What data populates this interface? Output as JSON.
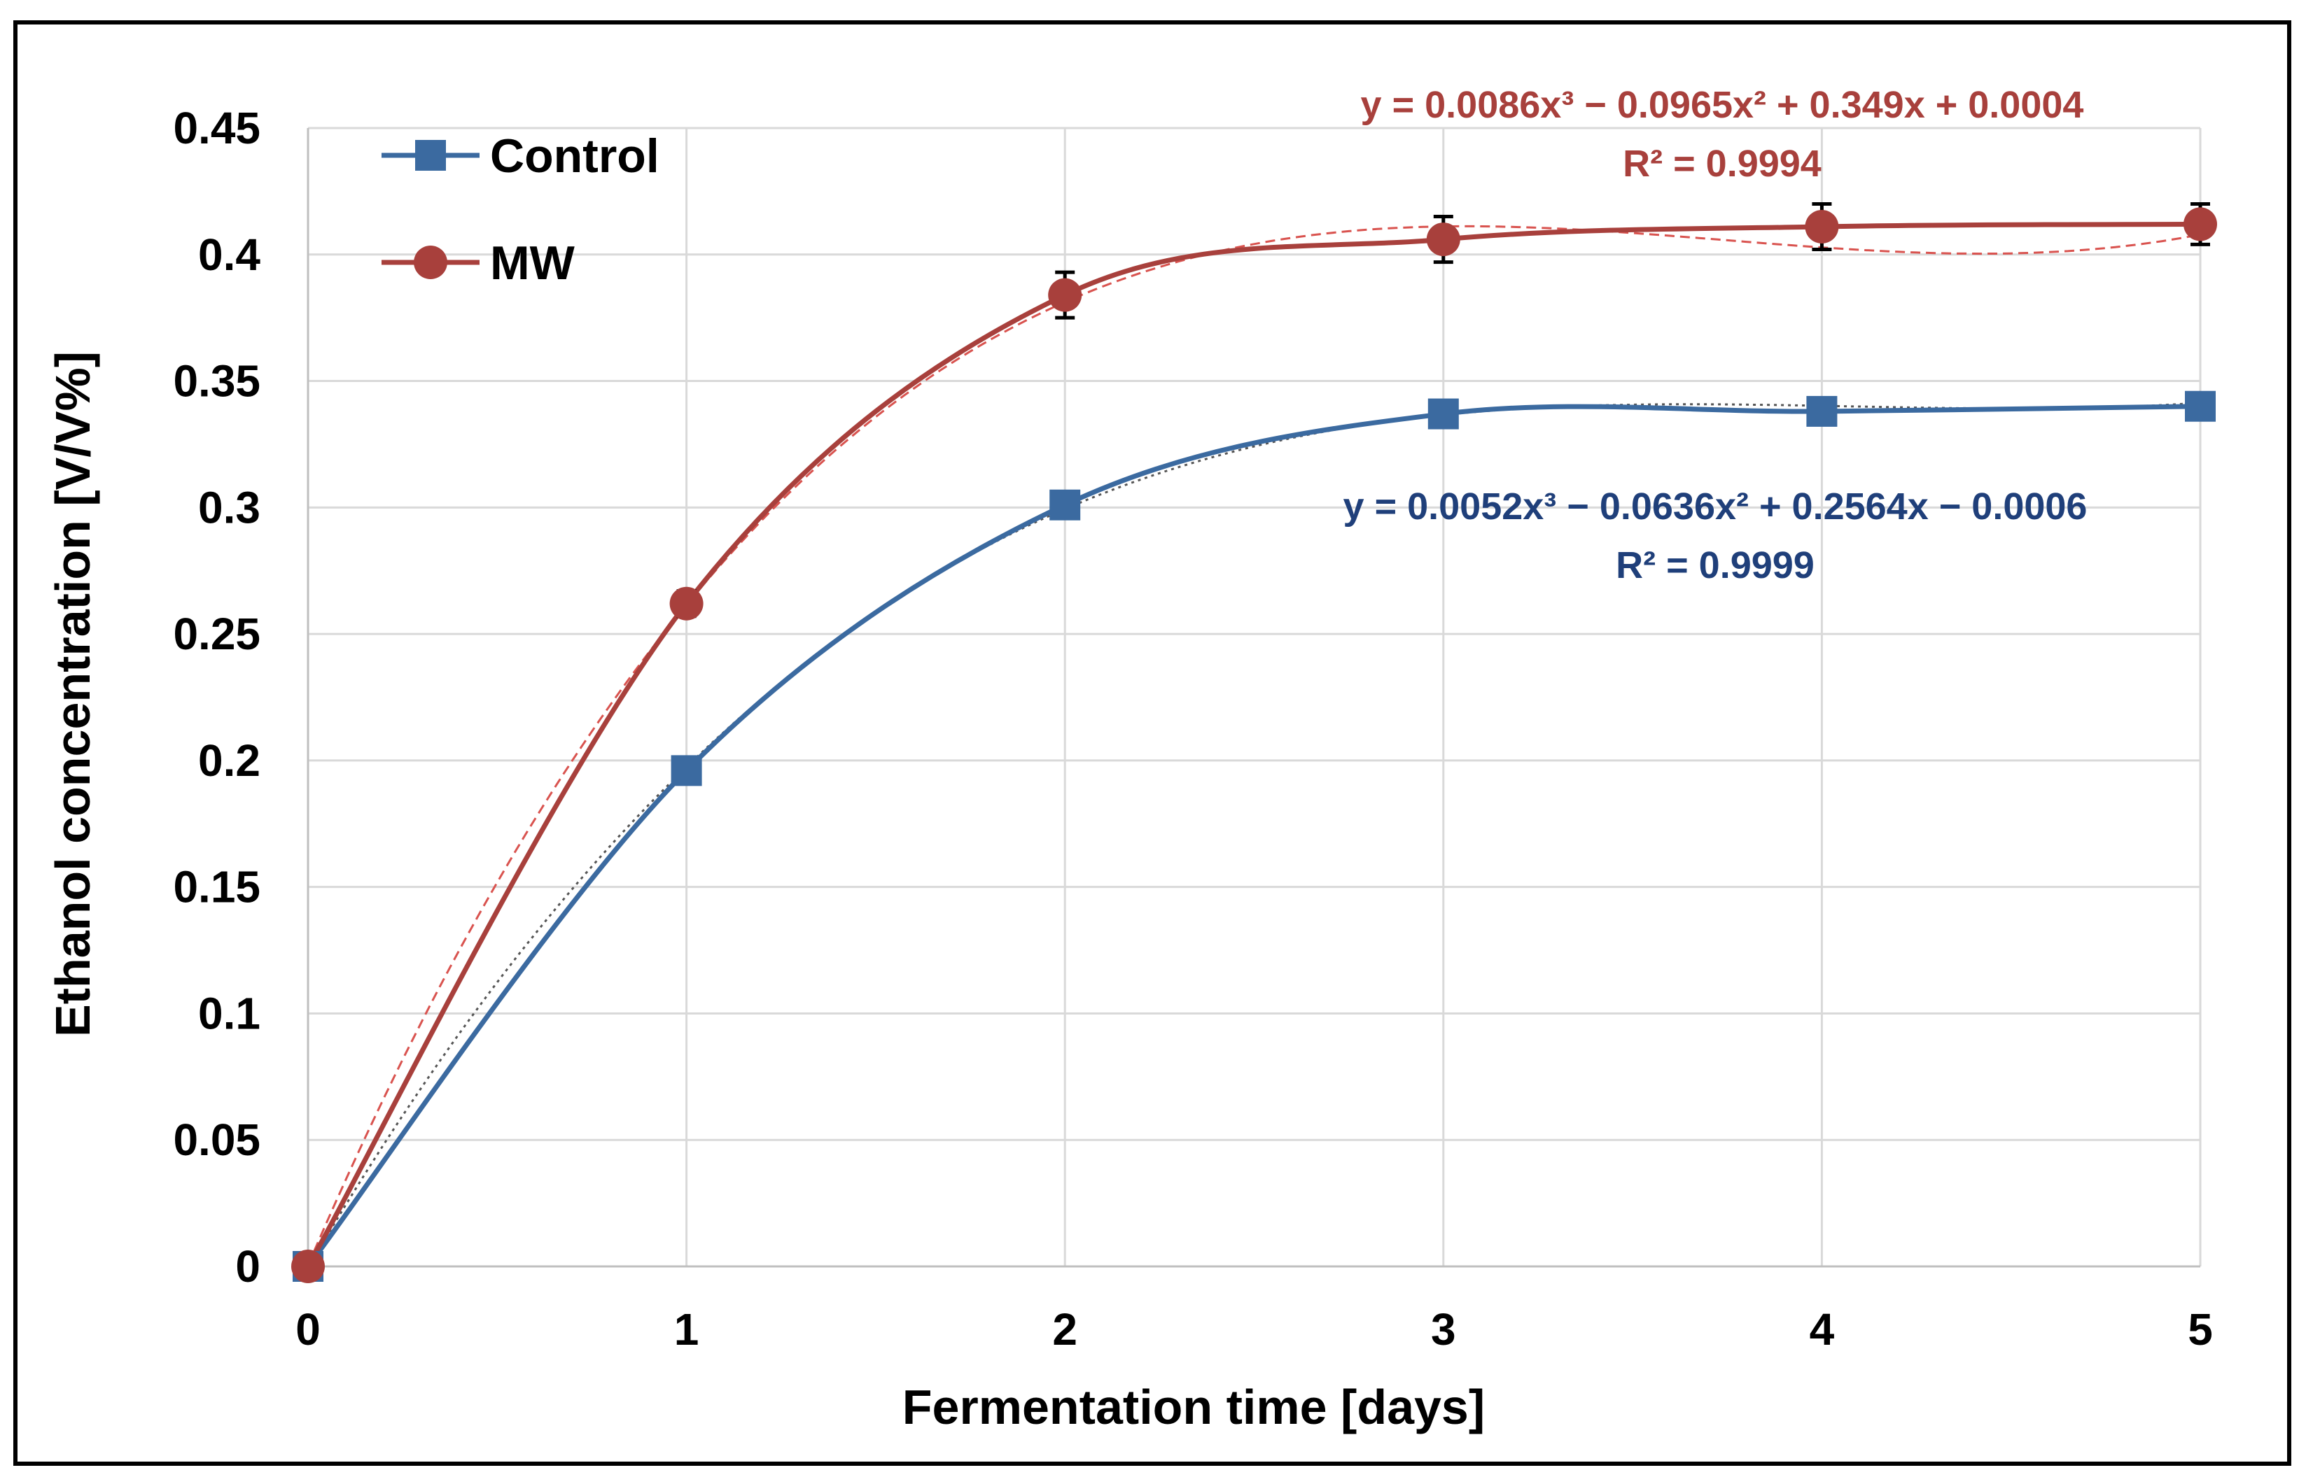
{
  "chart_data": {
    "type": "line",
    "title": "",
    "xlabel": "Fermentation time [days]",
    "ylabel": "Ethanol concentration [V/V%]",
    "x": [
      0,
      1,
      2,
      3,
      4,
      5
    ],
    "xlim": [
      0,
      5
    ],
    "ylim": [
      0,
      0.45
    ],
    "x_ticks": [
      "0",
      "1",
      "2",
      "3",
      "4",
      "5"
    ],
    "y_ticks": [
      "0",
      "0.05",
      "0.1",
      "0.15",
      "0.2",
      "0.25",
      "0.3",
      "0.35",
      "0.4",
      "0.45"
    ],
    "grid": true,
    "legend_position": "top-left",
    "series": [
      {
        "name": "Control",
        "color": "#3b6aa0",
        "marker": "square",
        "values": [
          0,
          0.196,
          0.301,
          0.337,
          0.338,
          0.34
        ],
        "error": [
          0,
          0,
          0,
          0,
          0,
          0
        ],
        "trendline": {
          "style": "dotted",
          "color": "#555555",
          "coefficients": [
            -0.0006,
            0.2564,
            -0.0636,
            0.0052
          ],
          "equation": "y = 0.0052x³ − 0.0636x² + 0.2564x − 0.0006",
          "r_squared": "R² = 0.9999",
          "label_color": "#1f3f7a"
        }
      },
      {
        "name": "MW",
        "color": "#a8403c",
        "marker": "circle",
        "values": [
          0,
          0.262,
          0.384,
          0.406,
          0.411,
          0.412
        ],
        "error": [
          0,
          0.005,
          0.009,
          0.009,
          0.009,
          0.008
        ],
        "trendline": {
          "style": "dashed",
          "color": "#d9534f",
          "coefficients": [
            0.0004,
            0.349,
            -0.0965,
            0.0086
          ],
          "equation": "y = 0.0086x³ − 0.0965x² + 0.349x + 0.0004",
          "r_squared": "R² = 0.9994",
          "label_color": "#a8403c"
        }
      }
    ]
  }
}
